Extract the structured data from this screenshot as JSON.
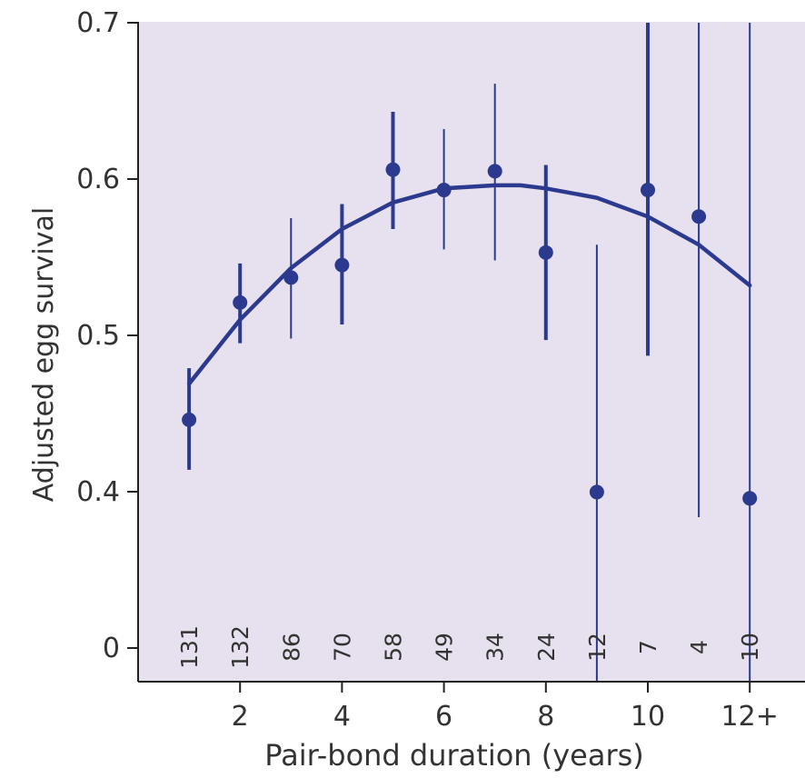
{
  "chart_data": {
    "type": "scatter",
    "xlabel": "Pair-bond duration (years)",
    "ylabel": "Adjusted egg survival",
    "x_ticks": [
      {
        "x": 2,
        "label": "2"
      },
      {
        "x": 4,
        "label": "4"
      },
      {
        "x": 6,
        "label": "6"
      },
      {
        "x": 8,
        "label": "8"
      },
      {
        "x": 10,
        "label": "10"
      },
      {
        "x": 12,
        "label": "12+"
      }
    ],
    "y_ticks": [
      {
        "y": 0,
        "label": "0"
      },
      {
        "y": 0.4,
        "label": "0.4"
      },
      {
        "y": 0.5,
        "label": "0.5"
      },
      {
        "y": 0.6,
        "label": "0.6"
      },
      {
        "y": 0.7,
        "label": "0.7"
      }
    ],
    "y_axis_break": "0 to 0.3 compressed",
    "xlim": [
      0,
      13.1
    ],
    "ylim": [
      0,
      0.7
    ],
    "grid": false,
    "colors": {
      "background": "#e7e0ef",
      "series": "#2b3a8f"
    },
    "points": [
      {
        "x": 1,
        "y": 0.446,
        "lo": 0.414,
        "hi": 0.479,
        "n": "131",
        "thick": true
      },
      {
        "x": 2,
        "y": 0.521,
        "lo": 0.495,
        "hi": 0.546,
        "n": "132",
        "thick": true
      },
      {
        "x": 3,
        "y": 0.537,
        "lo": 0.498,
        "hi": 0.575,
        "n": "86",
        "thick": false
      },
      {
        "x": 4,
        "y": 0.545,
        "lo": 0.507,
        "hi": 0.584,
        "n": "70",
        "thick": true
      },
      {
        "x": 5,
        "y": 0.606,
        "lo": 0.568,
        "hi": 0.643,
        "n": "58",
        "thick": true
      },
      {
        "x": 6,
        "y": 0.593,
        "lo": 0.555,
        "hi": 0.632,
        "n": "49",
        "thick": false
      },
      {
        "x": 7,
        "y": 0.605,
        "lo": 0.548,
        "hi": 0.661,
        "n": "34",
        "thick": false
      },
      {
        "x": 8,
        "y": 0.553,
        "lo": 0.497,
        "hi": 0.609,
        "n": "24",
        "thick": true
      },
      {
        "x": 9,
        "y": 0.399,
        "lo": 0.0,
        "hi": 0.558,
        "n": "12",
        "thick": false
      },
      {
        "x": 10,
        "y": 0.593,
        "lo": 0.487,
        "hi": 0.7,
        "n": "7",
        "thick": true
      },
      {
        "x": 11,
        "y": 0.576,
        "lo": 0.335,
        "hi": 0.7,
        "n": "4",
        "thick": false
      },
      {
        "x": 12,
        "y": 0.383,
        "lo": 0.0,
        "hi": 0.7,
        "n": "10",
        "thick": false
      }
    ],
    "fit_curve": {
      "type": "quadratic",
      "x": [
        1,
        2,
        3,
        4,
        5,
        6,
        7,
        7.5,
        8,
        9,
        10,
        11,
        12
      ],
      "y": [
        0.469,
        0.51,
        0.543,
        0.568,
        0.585,
        0.594,
        0.596,
        0.596,
        0.594,
        0.588,
        0.576,
        0.558,
        0.532
      ]
    }
  }
}
